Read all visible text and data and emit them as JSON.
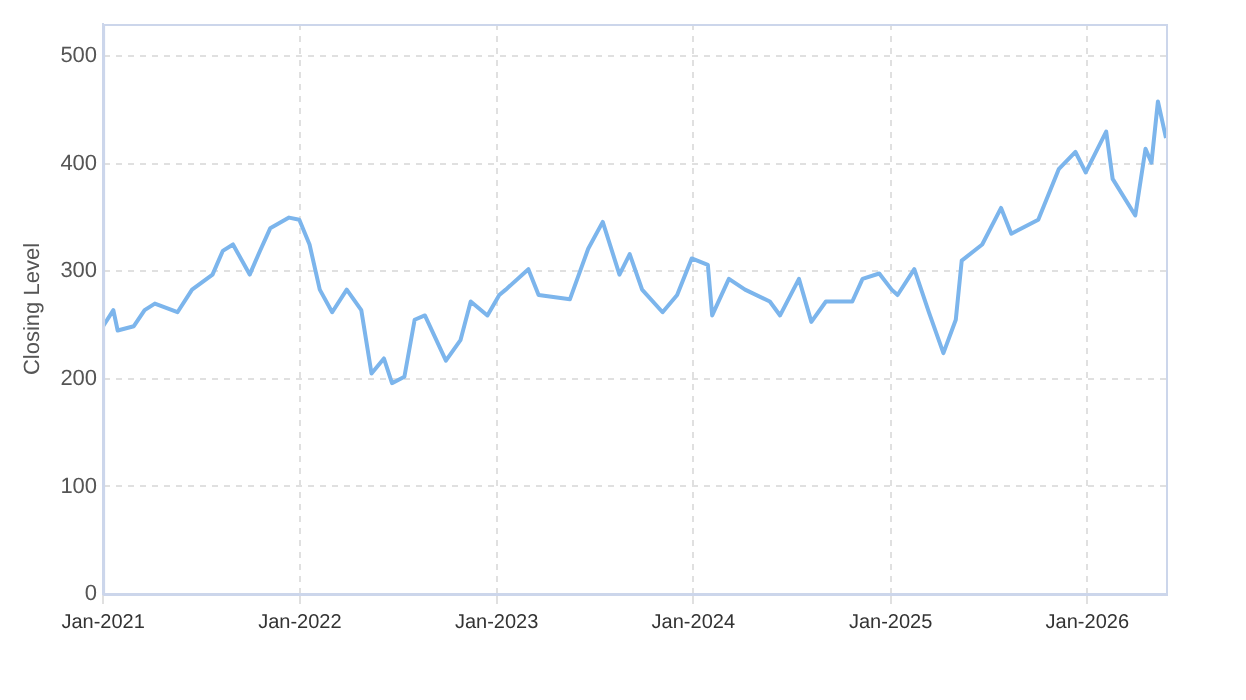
{
  "chart_data": {
    "type": "line",
    "ylabel": "Closing Level",
    "x": [
      "2021-01-01",
      "2021-01-20",
      "2021-01-28",
      "2021-02-27",
      "2021-03-19",
      "2021-04-07",
      "2021-05-19",
      "2021-06-15",
      "2021-07-23",
      "2021-08-11",
      "2021-08-30",
      "2021-09-30",
      "2021-10-19",
      "2021-11-07",
      "2021-12-12",
      "2021-12-31",
      "2022-01-19",
      "2022-02-07",
      "2022-03-02",
      "2022-03-29",
      "2022-04-25",
      "2022-05-14",
      "2022-06-06",
      "2022-06-21",
      "2022-07-14",
      "2022-08-02",
      "2022-08-21",
      "2022-09-29",
      "2022-10-26",
      "2022-11-14",
      "2022-12-15",
      "2023-01-06",
      "2023-01-18",
      "2023-03-01",
      "2023-03-20",
      "2023-05-17",
      "2023-06-20",
      "2023-07-17",
      "2023-08-17",
      "2023-09-05",
      "2023-09-28",
      "2023-11-05",
      "2023-12-02",
      "2023-12-29",
      "2024-01-28",
      "2024-02-05",
      "2024-03-07",
      "2024-04-06",
      "2024-05-22",
      "2024-06-10",
      "2024-07-15",
      "2024-08-07",
      "2024-09-03",
      "2024-10-22",
      "2024-11-10",
      "2024-12-11",
      "2025-01-03",
      "2025-01-14",
      "2025-02-14",
      "2025-03-13",
      "2025-04-09",
      "2025-05-02",
      "2025-05-13",
      "2025-06-20",
      "2025-07-25",
      "2025-08-13",
      "2025-10-02",
      "2025-11-09",
      "2025-12-10",
      "2025-12-29",
      "2026-02-05",
      "2026-02-17",
      "2026-03-31",
      "2026-04-19",
      "2026-04-30",
      "2026-05-12",
      "2026-05-27"
    ],
    "series": [
      {
        "color": "#7cb5ec",
        "values": [
          249,
          264,
          245,
          249,
          264,
          270,
          262,
          283,
          297,
          319,
          325,
          297,
          319,
          340,
          350,
          348,
          325,
          283,
          262,
          283,
          264,
          205,
          219,
          196,
          202,
          255,
          259,
          217,
          236,
          272,
          259,
          278,
          283,
          302,
          278,
          274,
          321,
          346,
          297,
          316,
          283,
          262,
          278,
          312,
          306,
          259,
          293,
          283,
          272,
          259,
          293,
          253,
          272,
          272,
          293,
          298,
          283,
          278,
          302,
          262,
          224,
          255,
          310,
          325,
          359,
          335,
          348,
          395,
          411,
          392,
          430,
          386,
          352,
          414,
          401,
          458,
          424
        ]
      }
    ],
    "xlim": [
      "2021-01-01",
      "2026-05-27"
    ],
    "xticks": [
      {
        "value": "2021-01-01",
        "label": "Jan-2021"
      },
      {
        "value": "2022-01-01",
        "label": "Jan-2022"
      },
      {
        "value": "2023-01-01",
        "label": "Jan-2023"
      },
      {
        "value": "2024-01-01",
        "label": "Jan-2024"
      },
      {
        "value": "2025-01-01",
        "label": "Jan-2025"
      },
      {
        "value": "2026-01-01",
        "label": "Jan-2026"
      }
    ],
    "ylim": [
      0,
      530
    ],
    "yticks": [
      0,
      100,
      200,
      300,
      400,
      500
    ],
    "grid": true,
    "legend": false,
    "marker": "none",
    "line_style": "solid"
  }
}
